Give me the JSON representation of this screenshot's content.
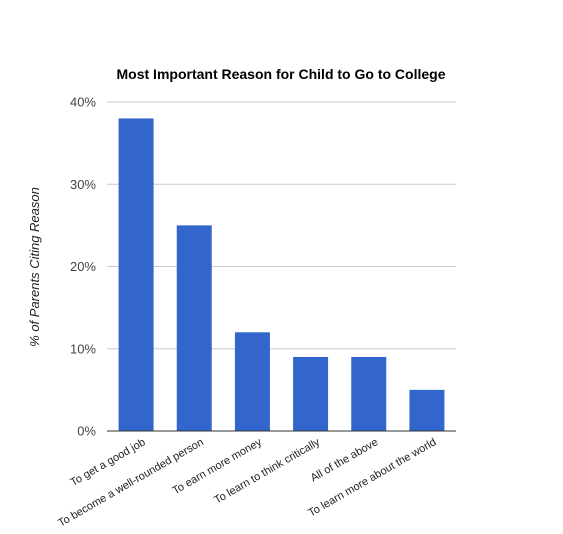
{
  "colors": {
    "bar": "#3366cc",
    "gridline": "#cccccc",
    "baseline": "#333333",
    "background": "#ffffff"
  },
  "chart_data": {
    "type": "bar",
    "title": "Most Important Reason for Child to Go to College",
    "xlabel": "",
    "ylabel": "% of Parents Citing Reason",
    "categories": [
      "To get a good job",
      "To become a well-rounded person",
      "To earn more money",
      "To learn to think critically",
      "All of the above",
      "To learn more about the world"
    ],
    "values": [
      38,
      25,
      12,
      9,
      9,
      5
    ],
    "ylim": [
      0,
      40
    ],
    "yticks": [
      0,
      10,
      20,
      30,
      40
    ],
    "ytick_labels": [
      "0%",
      "10%",
      "20%",
      "30%",
      "40%"
    ],
    "grid": true,
    "legend": "none",
    "x_label_rotation_deg": -30
  }
}
